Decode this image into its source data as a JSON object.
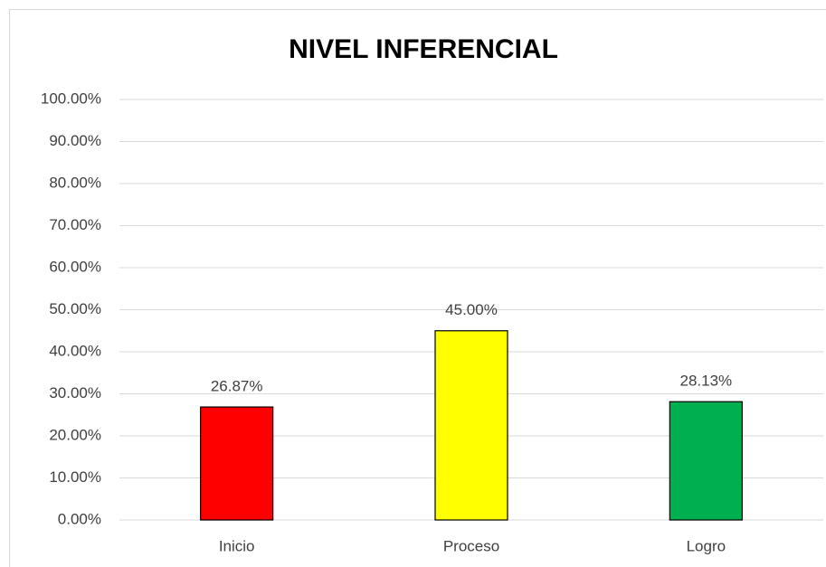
{
  "chart_data": {
    "type": "bar",
    "title": "NIVEL INFERENCIAL",
    "categories": [
      "Inicio",
      "Proceso",
      "Logro"
    ],
    "values": [
      26.87,
      45.0,
      28.13
    ],
    "value_labels": [
      "26.87%",
      "45.00%",
      "28.13%"
    ],
    "colors": [
      "#ff0000",
      "#ffff00",
      "#00b050"
    ],
    "ylim": [
      0,
      100
    ],
    "yticks": [
      {
        "value": 0,
        "label": "0.00%"
      },
      {
        "value": 10,
        "label": "10.00%"
      },
      {
        "value": 20,
        "label": "20.00%"
      },
      {
        "value": 30,
        "label": "30.00%"
      },
      {
        "value": 40,
        "label": "40.00%"
      },
      {
        "value": 50,
        "label": "50.00%"
      },
      {
        "value": 60,
        "label": "60.00%"
      },
      {
        "value": 70,
        "label": "70.00%"
      },
      {
        "value": 80,
        "label": "80.00%"
      },
      {
        "value": 90,
        "label": "90.00%"
      },
      {
        "value": 100,
        "label": "100.00%"
      }
    ],
    "grid": true
  }
}
